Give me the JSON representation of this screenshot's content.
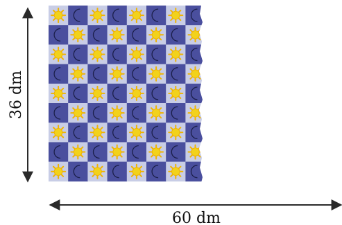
{
  "figure": {
    "height_label": "36 dm",
    "width_label": "60 dm",
    "pattern": {
      "rows": 9,
      "cols": 8,
      "tiles": [
        "sun-icon",
        "moon-icon"
      ],
      "colors": {
        "light_tile": "#c8cde6",
        "dark_tile": "#4a4f9e",
        "sun": "#f2d21b",
        "sun_ray": "#f0b400",
        "moon": "#e9ebf7",
        "moon_outline": "#1b1f4a"
      }
    },
    "arrow_color": "#2a2a2a"
  }
}
